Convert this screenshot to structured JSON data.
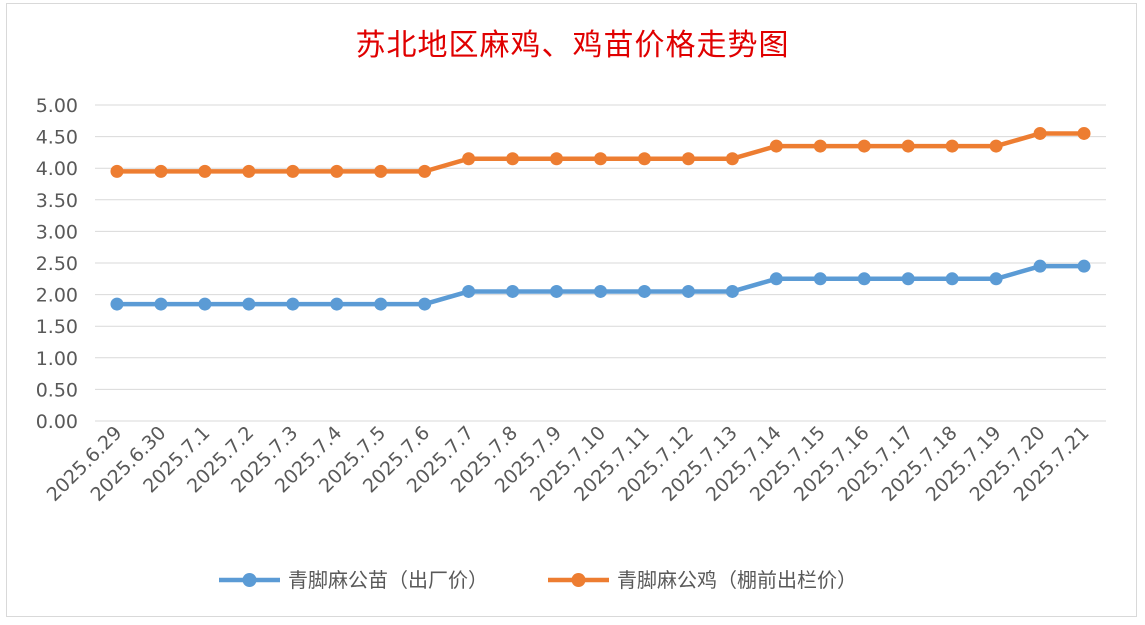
{
  "chart_data": {
    "type": "line",
    "title": "苏北地区麻鸡、鸡苗价格走势图",
    "xlabel": "",
    "ylabel": "",
    "categories": [
      "2025.6.29",
      "2025.6.30",
      "2025.7.1",
      "2025.7.2",
      "2025.7.3",
      "2025.7.4",
      "2025.7.5",
      "2025.7.6",
      "2025.7.7",
      "2025.7.8",
      "2025.7.9",
      "2025.7.10",
      "2025.7.11",
      "2025.7.12",
      "2025.7.13",
      "2025.7.14",
      "2025.7.15",
      "2025.7.16",
      "2025.7.17",
      "2025.7.18",
      "2025.7.19",
      "2025.7.20",
      "2025.7.21"
    ],
    "yticks": [
      "0.00",
      "0.50",
      "1.00",
      "1.50",
      "2.00",
      "2.50",
      "3.00",
      "3.50",
      "4.00",
      "4.50",
      "5.00"
    ],
    "ylim": [
      0,
      5
    ],
    "grid": true,
    "legend_position": "bottom",
    "series": [
      {
        "name": "青脚麻公苗（出厂价）",
        "color": "#5b9bd5",
        "values": [
          1.85,
          1.85,
          1.85,
          1.85,
          1.85,
          1.85,
          1.85,
          1.85,
          2.05,
          2.05,
          2.05,
          2.05,
          2.05,
          2.05,
          2.05,
          2.25,
          2.25,
          2.25,
          2.25,
          2.25,
          2.25,
          2.45,
          2.45
        ]
      },
      {
        "name": "青脚麻公鸡（棚前出栏价）",
        "color": "#ed7d31",
        "values": [
          3.95,
          3.95,
          3.95,
          3.95,
          3.95,
          3.95,
          3.95,
          3.95,
          4.15,
          4.15,
          4.15,
          4.15,
          4.15,
          4.15,
          4.15,
          4.35,
          4.35,
          4.35,
          4.35,
          4.35,
          4.35,
          4.55,
          4.55
        ]
      }
    ]
  }
}
